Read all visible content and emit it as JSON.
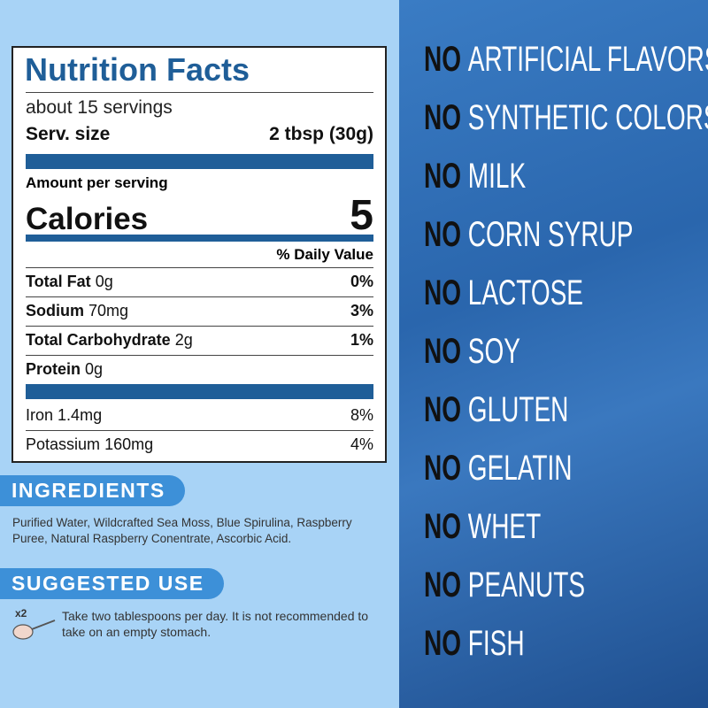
{
  "nutrition": {
    "title": "Nutrition Facts",
    "servings": "about 15 servings",
    "serving_size_label": "Serv. size",
    "serving_size_value": "2 tbsp (30g)",
    "amount_per_serving": "Amount per serving",
    "calories_label": "Calories",
    "calories_value": "5",
    "daily_value_header": "% Daily Value",
    "rows": [
      {
        "name": "Total Fat",
        "amount": "0g",
        "dv": "0%"
      },
      {
        "name": "Sodium",
        "amount": "70mg",
        "dv": "3%"
      },
      {
        "name": "Total Carbohydrate",
        "amount": "2g",
        "dv": "1%"
      },
      {
        "name": "Protein",
        "amount": "0g"
      }
    ],
    "minerals": [
      {
        "name": "Iron",
        "amount": "1.4mg",
        "dv": "8%"
      },
      {
        "name": "Potassium",
        "amount": "160mg",
        "dv": "4%"
      }
    ]
  },
  "ingredients": {
    "heading": "INGREDIENTS",
    "text": "Purified Water, Wildcrafted Sea Moss, Blue Spirulina, Raspberry Puree, Natural Raspberry Conentrate, Ascorbic Acid."
  },
  "suggested_use": {
    "heading": "SUGGESTED USE",
    "multiplier": "x2",
    "text": "Take two tablespoons per day. It is not recommended to take on an empty stomach."
  },
  "claims": [
    {
      "no": "NO",
      "item": "ARTIFICIAL FLAVORS"
    },
    {
      "no": "NO",
      "item": "SYNTHETIC COLORS"
    },
    {
      "no": "NO",
      "item": "MILK"
    },
    {
      "no": "NO",
      "item": "CORN SYRUP"
    },
    {
      "no": "NO",
      "item": "LACTOSE"
    },
    {
      "no": "NO",
      "item": "SOY"
    },
    {
      "no": "NO",
      "item": "GLUTEN"
    },
    {
      "no": "NO",
      "item": "GELATIN"
    },
    {
      "no": "NO",
      "item": "WHET"
    },
    {
      "no": "NO",
      "item": "PEANUTS"
    },
    {
      "no": "NO",
      "item": "FISH"
    }
  ]
}
